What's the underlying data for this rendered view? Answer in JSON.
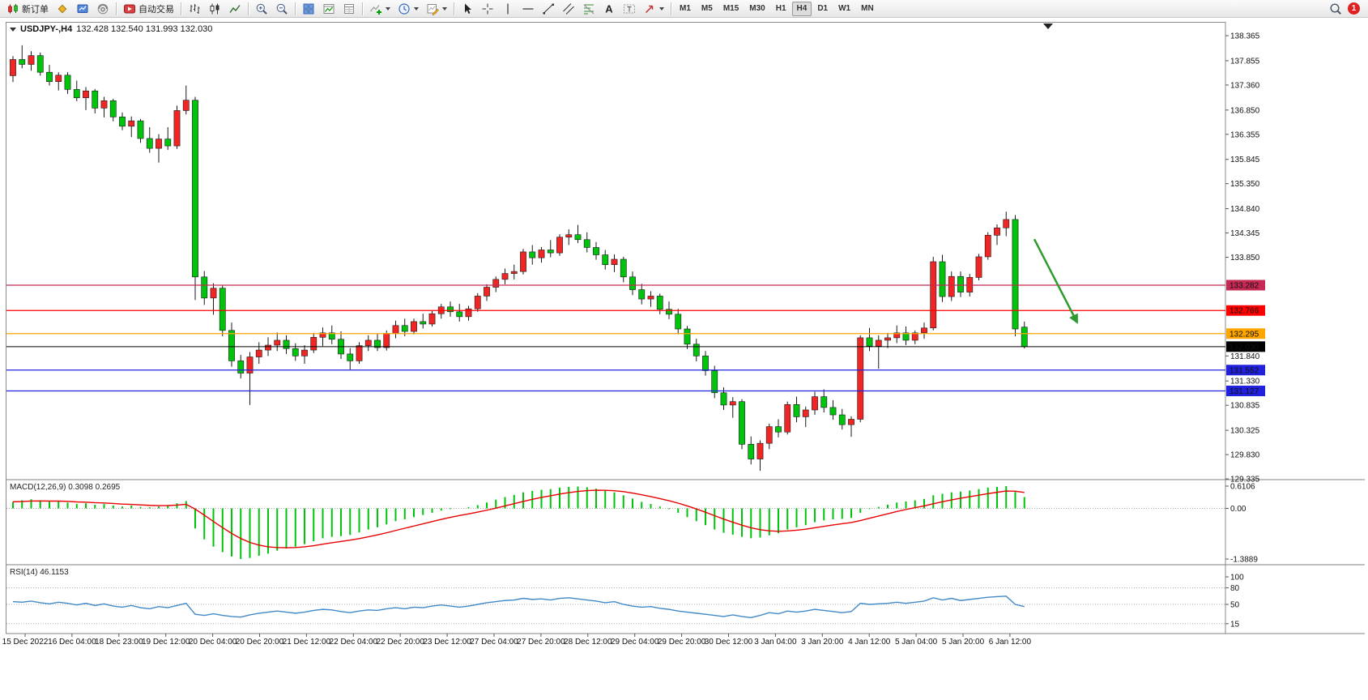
{
  "toolbar": {
    "new_order_label": "新订单",
    "auto_trading_label": "自动交易",
    "icon_buttons_left": [
      "new-chart-icon",
      "profiles-icon",
      "support-icon"
    ],
    "chart_tool_icons": [
      "bar-chart-icon",
      "candlestick-chart-icon",
      "line-chart-icon",
      "zoom-in-icon",
      "zoom-out-icon",
      "tile-windows-icon",
      "indicators-window-icon",
      "data-window-icon",
      "new-indicator-icon",
      "periods-icon",
      "templates-icon"
    ],
    "draw_tool_icons": [
      "cursor-icon",
      "crosshair-icon",
      "vertical-line-icon",
      "horizontal-line-icon",
      "trendline-icon",
      "equidistant-channel-icon",
      "fibonacci-icon",
      "text-icon",
      "text-label-icon",
      "arrow-shapes-icon"
    ],
    "timeframes": [
      "M1",
      "M5",
      "M15",
      "M30",
      "H1",
      "H4",
      "D1",
      "W1",
      "MN"
    ],
    "active_timeframe": "H4",
    "right_icons": [
      "search-icon"
    ],
    "notification_count": "1"
  },
  "chart": {
    "title": "USDJPY-,H4",
    "ohlc_display": "132.428 132.540 131.993 132.030"
  },
  "indicators": {
    "macd": {
      "title": "MACD(12,26,9) 0.3098 0.2695"
    },
    "rsi": {
      "title": "RSI(14) 46.1153"
    }
  },
  "chart_data": [
    {
      "type": "candlestick",
      "symbol": "USDJPY-",
      "timeframe": "H4",
      "up_color": "#f22525",
      "down_color": "#00c40c",
      "wick_color": "#1a1a1a",
      "ylim": [
        129.32,
        138.63
      ],
      "y_ticks": [
        138.365,
        137.855,
        137.36,
        136.85,
        136.355,
        135.845,
        135.35,
        134.84,
        134.345,
        133.85,
        131.84,
        131.33,
        130.835,
        130.325,
        129.83,
        129.335
      ],
      "levels": [
        {
          "price": 133.282,
          "color": "#c62a54"
        },
        {
          "price": 132.766,
          "color": "#ff0000"
        },
        {
          "price": 132.295,
          "color": "#ffa500"
        },
        {
          "price": 131.552,
          "color": "#2020dd"
        },
        {
          "price": 131.127,
          "color": "#2020dd"
        }
      ],
      "current_price": {
        "price": 132.03,
        "color": "#000000"
      },
      "annotation": {
        "type": "arrow",
        "color": "#2e9b2e",
        "from": {
          "x": 1277,
          "price": 134.22
        },
        "to": {
          "x": 1330,
          "price": 132.52
        }
      },
      "x_labels": [
        "15 Dec 2022",
        "16 Dec 04:00",
        "18 Dec 23:00",
        "19 Dec 12:00",
        "20 Dec 04:00",
        "20 Dec 20:00",
        "21 Dec 12:00",
        "22 Dec 04:00",
        "22 Dec 20:00",
        "23 Dec 12:00",
        "27 Dec 04:00",
        "27 Dec 20:00",
        "28 Dec 12:00",
        "29 Dec 04:00",
        "29 Dec 20:00",
        "30 Dec 12:00",
        "3 Jan 04:00",
        "3 Jan 20:00",
        "4 Jan 12:00",
        "5 Jan 04:00",
        "5 Jan 20:00",
        "6 Jan 12:00"
      ],
      "ohlc": [
        [
          137.55,
          137.95,
          137.42,
          137.88
        ],
        [
          137.88,
          138.17,
          137.7,
          137.78
        ],
        [
          137.78,
          138.05,
          137.65,
          137.96
        ],
        [
          137.96,
          138.02,
          137.55,
          137.62
        ],
        [
          137.62,
          137.77,
          137.35,
          137.43
        ],
        [
          137.43,
          137.62,
          137.25,
          137.56
        ],
        [
          137.56,
          137.62,
          137.18,
          137.27
        ],
        [
          137.27,
          137.45,
          137.03,
          137.1
        ],
        [
          137.1,
          137.32,
          136.85,
          137.24
        ],
        [
          137.24,
          137.28,
          136.78,
          136.89
        ],
        [
          136.89,
          137.12,
          136.7,
          137.04
        ],
        [
          137.04,
          137.08,
          136.62,
          136.71
        ],
        [
          136.71,
          136.8,
          136.44,
          136.52
        ],
        [
          136.52,
          136.72,
          136.3,
          136.63
        ],
        [
          136.63,
          136.67,
          136.18,
          136.27
        ],
        [
          136.27,
          136.5,
          135.98,
          136.07
        ],
        [
          136.07,
          136.36,
          135.78,
          136.26
        ],
        [
          136.26,
          136.5,
          136.04,
          136.12
        ],
        [
          136.12,
          136.94,
          136.06,
          136.84
        ],
        [
          136.84,
          137.35,
          136.76,
          137.05
        ],
        [
          137.05,
          137.12,
          132.98,
          133.45
        ],
        [
          133.45,
          133.57,
          132.88,
          133.02
        ],
        [
          133.02,
          133.32,
          132.68,
          133.22
        ],
        [
          133.22,
          133.27,
          132.24,
          132.36
        ],
        [
          132.36,
          132.52,
          131.62,
          131.74
        ],
        [
          131.74,
          131.86,
          131.38,
          131.49
        ],
        [
          131.49,
          131.92,
          130.84,
          131.82
        ],
        [
          131.82,
          132.12,
          131.68,
          131.96
        ],
        [
          131.96,
          132.22,
          131.84,
          132.06
        ],
        [
          132.06,
          132.32,
          131.94,
          132.16
        ],
        [
          132.16,
          132.26,
          131.88,
          131.99
        ],
        [
          131.99,
          132.1,
          131.74,
          131.84
        ],
        [
          131.84,
          132.06,
          131.68,
          131.96
        ],
        [
          131.96,
          132.31,
          131.9,
          132.22
        ],
        [
          132.22,
          132.42,
          132.04,
          132.31
        ],
        [
          132.31,
          132.46,
          132.08,
          132.18
        ],
        [
          132.18,
          132.34,
          131.78,
          131.88
        ],
        [
          131.88,
          132.0,
          131.56,
          131.74
        ],
        [
          131.74,
          132.12,
          131.68,
          132.05
        ],
        [
          132.05,
          132.26,
          131.94,
          132.16
        ],
        [
          132.16,
          132.3,
          131.94,
          132.01
        ],
        [
          132.01,
          132.36,
          131.95,
          132.3
        ],
        [
          132.3,
          132.56,
          132.2,
          132.46
        ],
        [
          132.46,
          132.6,
          132.24,
          132.34
        ],
        [
          132.34,
          132.6,
          132.28,
          132.54
        ],
        [
          132.54,
          132.7,
          132.4,
          132.49
        ],
        [
          132.49,
          132.76,
          132.44,
          132.7
        ],
        [
          132.7,
          132.9,
          132.6,
          132.84
        ],
        [
          132.84,
          132.95,
          132.64,
          132.74
        ],
        [
          132.74,
          132.9,
          132.54,
          132.64
        ],
        [
          132.64,
          132.86,
          132.56,
          132.8
        ],
        [
          132.8,
          133.12,
          132.74,
          133.06
        ],
        [
          133.06,
          133.3,
          132.96,
          133.24
        ],
        [
          133.24,
          133.46,
          133.14,
          133.4
        ],
        [
          133.4,
          133.62,
          133.3,
          133.52
        ],
        [
          133.52,
          133.7,
          133.4,
          133.56
        ],
        [
          133.56,
          134.02,
          133.5,
          133.96
        ],
        [
          133.96,
          134.1,
          133.7,
          133.84
        ],
        [
          133.84,
          134.06,
          133.74,
          134.0
        ],
        [
          134.0,
          134.2,
          133.85,
          133.94
        ],
        [
          133.94,
          134.32,
          133.88,
          134.26
        ],
        [
          134.26,
          134.42,
          134.1,
          134.31
        ],
        [
          134.31,
          134.51,
          134.14,
          134.21
        ],
        [
          134.21,
          134.36,
          133.95,
          134.05
        ],
        [
          134.05,
          134.16,
          133.8,
          133.9
        ],
        [
          133.9,
          134.0,
          133.6,
          133.7
        ],
        [
          133.7,
          133.91,
          133.55,
          133.81
        ],
        [
          133.81,
          133.86,
          133.34,
          133.45
        ],
        [
          133.45,
          133.56,
          133.08,
          133.19
        ],
        [
          133.19,
          133.31,
          132.89,
          133.0
        ],
        [
          133.0,
          133.16,
          132.84,
          133.06
        ],
        [
          133.06,
          133.11,
          132.69,
          132.79
        ],
        [
          132.79,
          132.95,
          132.59,
          132.69
        ],
        [
          132.69,
          132.8,
          132.28,
          132.39
        ],
        [
          132.39,
          132.45,
          131.98,
          132.08
        ],
        [
          132.08,
          132.19,
          131.73,
          131.84
        ],
        [
          131.84,
          131.94,
          131.44,
          131.54
        ],
        [
          131.54,
          131.64,
          130.98,
          131.09
        ],
        [
          131.09,
          131.2,
          130.74,
          130.84
        ],
        [
          130.84,
          131.0,
          130.58,
          130.91
        ],
        [
          130.91,
          130.96,
          129.94,
          130.04
        ],
        [
          130.04,
          130.2,
          129.63,
          129.74
        ],
        [
          129.74,
          130.12,
          129.5,
          130.06
        ],
        [
          130.06,
          130.46,
          129.94,
          130.4
        ],
        [
          130.4,
          130.55,
          130.18,
          130.29
        ],
        [
          130.29,
          130.91,
          130.24,
          130.85
        ],
        [
          130.85,
          131.01,
          130.49,
          130.6
        ],
        [
          130.6,
          130.81,
          130.39,
          130.74
        ],
        [
          130.74,
          131.11,
          130.64,
          131.01
        ],
        [
          131.01,
          131.16,
          130.69,
          130.79
        ],
        [
          130.79,
          130.94,
          130.54,
          130.64
        ],
        [
          130.64,
          130.76,
          130.34,
          130.44
        ],
        [
          130.44,
          130.61,
          130.19,
          130.55
        ],
        [
          130.55,
          132.26,
          130.49,
          132.21
        ],
        [
          132.21,
          132.41,
          131.94,
          132.04
        ],
        [
          132.04,
          132.26,
          131.58,
          132.16
        ],
        [
          132.16,
          132.31,
          132.0,
          132.21
        ],
        [
          132.21,
          132.46,
          132.1,
          132.31
        ],
        [
          132.31,
          132.44,
          132.06,
          132.16
        ],
        [
          132.16,
          132.36,
          132.08,
          132.31
        ],
        [
          132.31,
          132.52,
          132.19,
          132.41
        ],
        [
          132.41,
          133.86,
          132.36,
          133.76
        ],
        [
          133.76,
          133.9,
          132.94,
          133.05
        ],
        [
          133.05,
          133.56,
          132.96,
          133.46
        ],
        [
          133.46,
          133.56,
          133.04,
          133.14
        ],
        [
          133.14,
          133.51,
          133.05,
          133.44
        ],
        [
          133.44,
          133.92,
          133.38,
          133.86
        ],
        [
          133.86,
          134.36,
          133.8,
          134.3
        ],
        [
          134.3,
          134.52,
          134.1,
          134.45
        ],
        [
          134.45,
          134.78,
          134.28,
          134.62
        ],
        [
          134.62,
          134.71,
          132.24,
          132.39
        ],
        [
          132.428,
          132.54,
          131.993,
          132.03
        ]
      ]
    },
    {
      "type": "bar",
      "name": "MACD(12,26,9)",
      "current": "0.3098 0.2695",
      "histogram_color": "#00c40c",
      "signal_color": "#e80000",
      "signal_period": 9,
      "y_labels": [
        {
          "v": 0.6106,
          "t": "0.6106"
        },
        {
          "v": 0,
          "t": "0.00"
        },
        {
          "v": -1.3889,
          "t": "-1.3889"
        }
      ],
      "values": [
        0.18,
        0.22,
        0.25,
        0.22,
        0.18,
        0.2,
        0.16,
        0.12,
        0.14,
        0.1,
        0.12,
        0.08,
        0.05,
        0.08,
        0.04,
        0.03,
        0.05,
        0.08,
        0.14,
        0.2,
        -0.55,
        -0.85,
        -1.05,
        -1.2,
        -1.32,
        -1.3889,
        -1.36,
        -1.3,
        -1.24,
        -1.16,
        -1.1,
        -1.05,
        -0.98,
        -0.9,
        -0.82,
        -0.78,
        -0.76,
        -0.73,
        -0.66,
        -0.58,
        -0.52,
        -0.44,
        -0.35,
        -0.3,
        -0.24,
        -0.18,
        -0.12,
        -0.06,
        -0.02,
        0.0,
        0.03,
        0.09,
        0.16,
        0.24,
        0.31,
        0.37,
        0.44,
        0.48,
        0.51,
        0.53,
        0.57,
        0.59,
        0.6,
        0.58,
        0.54,
        0.48,
        0.44,
        0.36,
        0.27,
        0.18,
        0.12,
        0.05,
        -0.02,
        -0.12,
        -0.24,
        -0.35,
        -0.46,
        -0.58,
        -0.67,
        -0.72,
        -0.78,
        -0.82,
        -0.8,
        -0.74,
        -0.68,
        -0.58,
        -0.52,
        -0.46,
        -0.38,
        -0.33,
        -0.3,
        -0.29,
        -0.26,
        -0.12,
        -0.02,
        0.04,
        0.1,
        0.16,
        0.19,
        0.22,
        0.26,
        0.36,
        0.4,
        0.44,
        0.46,
        0.49,
        0.53,
        0.57,
        0.59,
        0.6106,
        0.45,
        0.3098
      ]
    },
    {
      "type": "line",
      "name": "RSI(14)",
      "current": "46.1153",
      "line_color": "#4289c8",
      "ylim": [
        0,
        100
      ],
      "levels": [
        80,
        50,
        15
      ],
      "y_labels": [
        {
          "v": 100,
          "t": "100"
        },
        {
          "v": 80,
          "t": "80"
        },
        {
          "v": 50,
          "t": "50"
        },
        {
          "v": 15,
          "t": "15"
        }
      ],
      "values": [
        55,
        54,
        56,
        53,
        51,
        54,
        52,
        49,
        52,
        48,
        51,
        47,
        45,
        48,
        44,
        42,
        46,
        44,
        48,
        52,
        32,
        30,
        33,
        30,
        28,
        27,
        31,
        34,
        36,
        38,
        36,
        34,
        36,
        39,
        41,
        40,
        37,
        35,
        38,
        40,
        39,
        42,
        44,
        42,
        45,
        44,
        47,
        49,
        47,
        45,
        47,
        50,
        53,
        55,
        57,
        58,
        61,
        59,
        60,
        58,
        61,
        62,
        60,
        58,
        56,
        53,
        55,
        50,
        47,
        45,
        46,
        43,
        41,
        38,
        36,
        34,
        32,
        30,
        28,
        31,
        28,
        26,
        30,
        35,
        33,
        38,
        36,
        38,
        41,
        39,
        37,
        35,
        37,
        52,
        50,
        51,
        52,
        54,
        52,
        54,
        56,
        62,
        58,
        61,
        57,
        59,
        61,
        63,
        64,
        65,
        50,
        46.1153
      ]
    }
  ]
}
